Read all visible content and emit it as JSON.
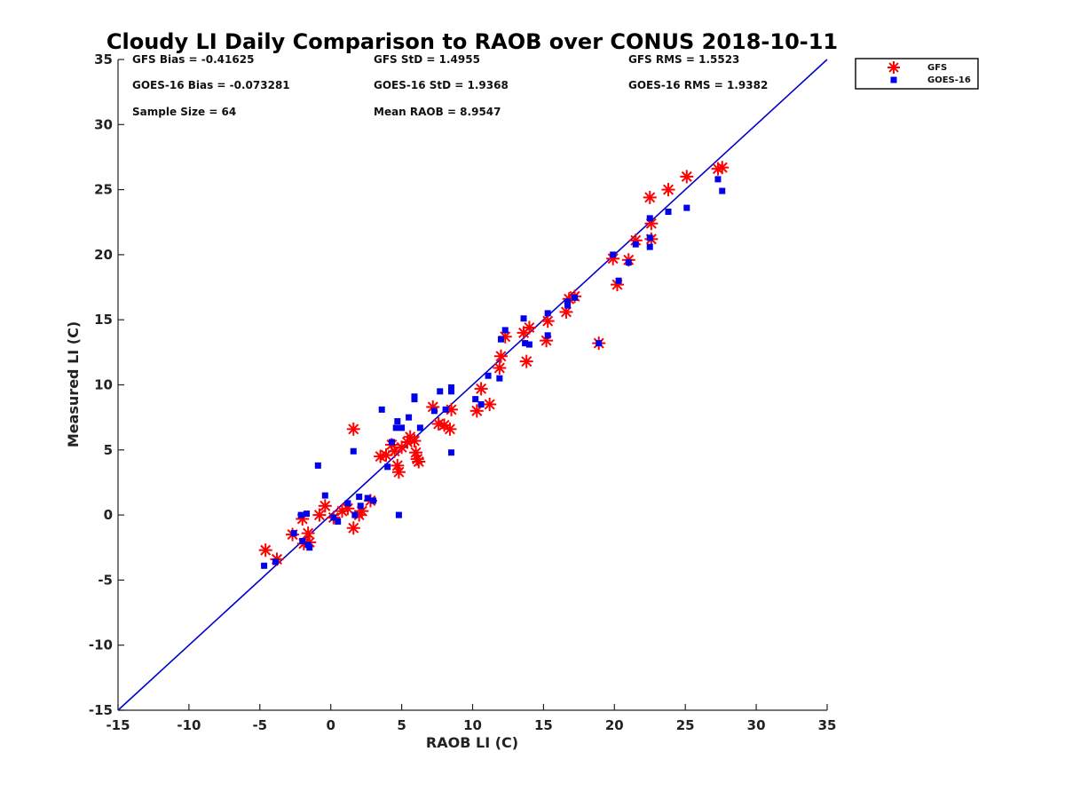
{
  "chart_data": {
    "type": "scatter",
    "title": "Cloudy LI Daily Comparison to RAOB over CONUS 2018-10-11",
    "xlabel": "RAOB LI (C)",
    "ylabel": "Measured LI (C)",
    "xlim": [
      -15,
      35
    ],
    "ylim": [
      -15,
      35
    ],
    "xticks": [
      "-15",
      "-10",
      "-5",
      "0",
      "5",
      "10",
      "15",
      "20",
      "25",
      "30",
      "35"
    ],
    "yticks": [
      "-15",
      "-10",
      "-5",
      "0",
      "5",
      "10",
      "15",
      "20",
      "25",
      "30",
      "35"
    ],
    "grid": false,
    "legend_position": "outside-top-right",
    "stats": [
      "GFS Bias = -0.41625",
      "GFS StD = 1.4955",
      "GFS RMS = 1.5523",
      "GOES-16 Bias = -0.073281",
      "GOES-16 StD = 1.9368",
      "GOES-16 RMS = 1.9382",
      "Sample Size = 64",
      "Mean RAOB = 8.9547"
    ],
    "reference_line": {
      "from": [
        -15,
        -15
      ],
      "to": [
        35,
        35
      ],
      "color": "#0000cc"
    },
    "series": [
      {
        "name": "GFS",
        "marker": "asterisk",
        "color": "#ff0000",
        "points": [
          [
            -4.6,
            -2.7
          ],
          [
            -3.8,
            -3.4
          ],
          [
            -2.7,
            -1.5
          ],
          [
            -2.0,
            -0.3
          ],
          [
            -1.9,
            -2.2
          ],
          [
            -1.6,
            -1.4
          ],
          [
            -1.5,
            -2.1
          ],
          [
            -0.8,
            0.0
          ],
          [
            -0.4,
            0.7
          ],
          [
            0.2,
            -0.2
          ],
          [
            0.8,
            0.3
          ],
          [
            1.2,
            0.5
          ],
          [
            1.6,
            -1.0
          ],
          [
            1.6,
            6.6
          ],
          [
            2.0,
            0.0
          ],
          [
            2.2,
            0.3
          ],
          [
            2.8,
            1.1
          ],
          [
            3.5,
            4.5
          ],
          [
            3.9,
            4.6
          ],
          [
            4.3,
            5.4
          ],
          [
            4.5,
            4.9
          ],
          [
            4.7,
            3.8
          ],
          [
            4.8,
            3.3
          ],
          [
            5.0,
            5.2
          ],
          [
            5.4,
            5.6
          ],
          [
            5.6,
            6.0
          ],
          [
            5.9,
            5.7
          ],
          [
            6.0,
            4.8
          ],
          [
            6.1,
            4.3
          ],
          [
            6.2,
            4.1
          ],
          [
            7.2,
            8.3
          ],
          [
            7.6,
            7.0
          ],
          [
            8.0,
            6.9
          ],
          [
            8.4,
            6.6
          ],
          [
            8.5,
            8.1
          ],
          [
            10.3,
            8.0
          ],
          [
            10.6,
            9.7
          ],
          [
            11.2,
            8.5
          ],
          [
            11.9,
            11.3
          ],
          [
            12.0,
            12.2
          ],
          [
            12.3,
            13.7
          ],
          [
            13.6,
            14.0
          ],
          [
            13.8,
            11.8
          ],
          [
            14.0,
            14.4
          ],
          [
            15.2,
            13.4
          ],
          [
            15.3,
            14.9
          ],
          [
            16.6,
            15.6
          ],
          [
            16.8,
            16.6
          ],
          [
            17.2,
            16.8
          ],
          [
            18.9,
            13.2
          ],
          [
            19.9,
            19.7
          ],
          [
            20.2,
            17.7
          ],
          [
            21.0,
            19.6
          ],
          [
            21.5,
            21.1
          ],
          [
            22.5,
            24.4
          ],
          [
            22.6,
            22.4
          ],
          [
            22.6,
            21.2
          ],
          [
            23.8,
            25.0
          ],
          [
            25.1,
            26.0
          ],
          [
            27.3,
            26.6
          ],
          [
            27.6,
            26.7
          ]
        ]
      },
      {
        "name": "GOES-16",
        "marker": "square",
        "color": "#0000ee",
        "points": [
          [
            -4.7,
            -3.9
          ],
          [
            -3.9,
            -3.6
          ],
          [
            -2.6,
            -1.4
          ],
          [
            -2.1,
            0.0
          ],
          [
            -2.0,
            -2.0
          ],
          [
            -1.7,
            0.1
          ],
          [
            -1.6,
            -2.3
          ],
          [
            -1.5,
            -2.5
          ],
          [
            -0.9,
            3.8
          ],
          [
            -0.4,
            1.5
          ],
          [
            0.2,
            -0.2
          ],
          [
            0.5,
            -0.5
          ],
          [
            1.2,
            0.9
          ],
          [
            1.6,
            4.9
          ],
          [
            1.7,
            0.0
          ],
          [
            2.0,
            1.4
          ],
          [
            2.1,
            0.7
          ],
          [
            2.6,
            1.3
          ],
          [
            3.0,
            1.1
          ],
          [
            3.6,
            8.1
          ],
          [
            4.0,
            3.7
          ],
          [
            4.3,
            5.6
          ],
          [
            4.6,
            6.7
          ],
          [
            4.7,
            7.2
          ],
          [
            4.8,
            0.0
          ],
          [
            5.0,
            6.7
          ],
          [
            5.5,
            7.5
          ],
          [
            5.9,
            8.9
          ],
          [
            5.9,
            9.1
          ],
          [
            6.3,
            6.7
          ],
          [
            7.3,
            8.0
          ],
          [
            7.7,
            9.5
          ],
          [
            8.1,
            8.1
          ],
          [
            8.5,
            9.8
          ],
          [
            8.5,
            9.5
          ],
          [
            8.5,
            4.8
          ],
          [
            10.2,
            8.9
          ],
          [
            10.6,
            8.5
          ],
          [
            11.1,
            10.7
          ],
          [
            11.9,
            10.5
          ],
          [
            12.0,
            13.5
          ],
          [
            12.3,
            14.2
          ],
          [
            13.6,
            15.1
          ],
          [
            13.7,
            13.2
          ],
          [
            14.0,
            13.1
          ],
          [
            15.3,
            15.5
          ],
          [
            15.3,
            13.8
          ],
          [
            16.7,
            16.4
          ],
          [
            16.7,
            16.1
          ],
          [
            17.2,
            16.7
          ],
          [
            18.9,
            13.2
          ],
          [
            19.9,
            20.0
          ],
          [
            20.3,
            18.0
          ],
          [
            21.0,
            19.4
          ],
          [
            21.5,
            20.8
          ],
          [
            22.5,
            22.8
          ],
          [
            22.5,
            21.3
          ],
          [
            22.5,
            20.6
          ],
          [
            23.8,
            23.3
          ],
          [
            25.1,
            23.6
          ],
          [
            27.3,
            25.8
          ],
          [
            27.6,
            24.9
          ]
        ]
      }
    ]
  }
}
